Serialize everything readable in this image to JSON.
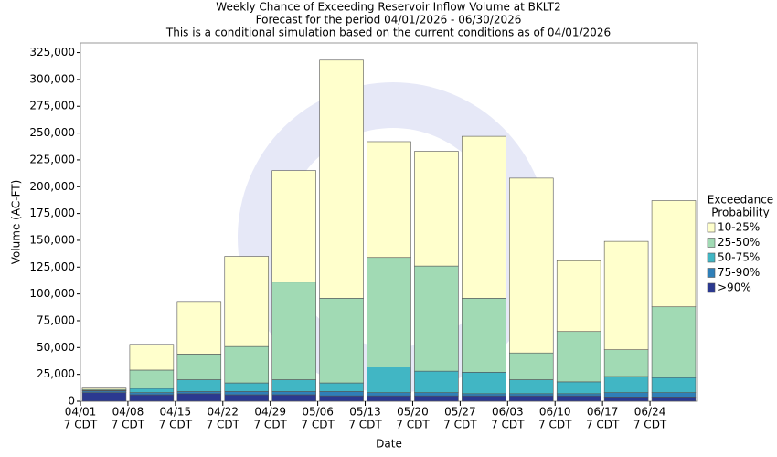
{
  "chart_data": {
    "type": "stacked_bar",
    "title_lines": [
      "Weekly Chance of Exceeding Reservoir Inflow Volume at BKLT2",
      "Forecast for the period 04/01/2026 - 06/30/2026",
      "This is a conditional simulation based on the current conditions as of 04/01/2026"
    ],
    "y_label": "Volume (AC-FT)",
    "x_label": "Date",
    "categories": [
      "04/01",
      "04/08",
      "04/15",
      "04/22",
      "04/29",
      "05/06",
      "05/13",
      "05/20",
      "05/27",
      "06/03",
      "06/10",
      "06/17",
      "06/24"
    ],
    "category_sublabel": "7 CDT",
    "legend_title_lines": [
      "Exceedance",
      "Probability"
    ],
    "series": [
      {
        "name": ">90%",
        "color": "#2b3990",
        "values": [
          8000,
          6000,
          7000,
          6000,
          6000,
          5000,
          5000,
          5000,
          5000,
          5000,
          5000,
          4000,
          4000
        ]
      },
      {
        "name": "75-90%",
        "color": "#2f7fb8",
        "values": [
          1500,
          2000,
          2000,
          3000,
          3000,
          4000,
          3000,
          3000,
          2000,
          2000,
          2000,
          4000,
          4000
        ]
      },
      {
        "name": "50-75%",
        "color": "#41b6c4",
        "values": [
          500,
          4000,
          11000,
          8000,
          11000,
          8000,
          24000,
          20000,
          20000,
          13000,
          11000,
          15000,
          14000
        ]
      },
      {
        "name": "25-50%",
        "color": "#a1dab4",
        "values": [
          1000,
          17000,
          24000,
          34000,
          91000,
          79000,
          102000,
          98000,
          69000,
          25000,
          47000,
          25000,
          66000
        ]
      },
      {
        "name": "10-25%",
        "color": "#ffffcc",
        "values": [
          2000,
          24000,
          49000,
          84000,
          104000,
          222000,
          108000,
          107000,
          151000,
          163000,
          66000,
          101000,
          99000
        ]
      }
    ],
    "ylim": [
      0,
      334000
    ],
    "yticks": [
      0,
      {
        "value": 25000,
        "label": "25,000"
      },
      {
        "value": 50000,
        "label": "50,000"
      },
      {
        "value": 75000,
        "label": "75,000"
      },
      {
        "value": 100000,
        "label": "100,000"
      },
      {
        "value": 125000,
        "label": "125,000"
      },
      {
        "value": 150000,
        "label": "150,000"
      },
      {
        "value": 175000,
        "label": "175,000"
      },
      {
        "value": 200000,
        "label": "200,000"
      },
      {
        "value": 225000,
        "label": "225,000"
      },
      {
        "value": 250000,
        "label": "250,000"
      },
      {
        "value": 275000,
        "label": "275,000"
      },
      {
        "value": 300000,
        "label": "300,000"
      },
      {
        "value": 325000,
        "label": "325,000"
      }
    ],
    "legend_position": "right"
  }
}
